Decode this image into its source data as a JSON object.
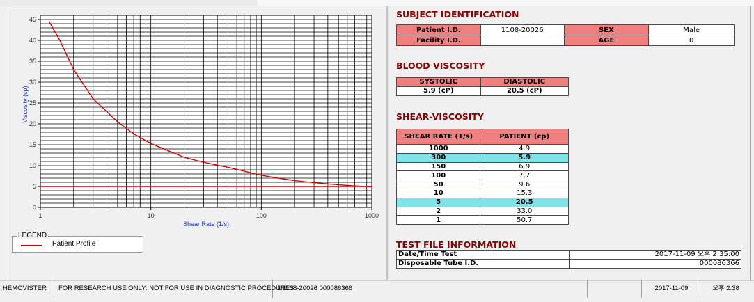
{
  "subject": {
    "title": "SUBJECT IDENTIFICATION",
    "patient_id_label": "Patient I.D.",
    "patient_id": "1108-20026",
    "sex_label": "SEX",
    "sex": "Male",
    "facility_id_label": "Facility I.D.",
    "facility_id": "",
    "age_label": "AGE",
    "age": "0"
  },
  "blood_viscosity": {
    "title": "BLOOD VISCOSITY",
    "systolic_label": "SYSTOLIC",
    "diastolic_label": "DIASTOLIC",
    "systolic": "5.9 (cP)",
    "diastolic": "20.5 (cP)"
  },
  "shear_viscosity": {
    "title": "SHEAR-VISCOSITY",
    "col1": "SHEAR RATE (1/s)",
    "col2": "PATIENT (cp)",
    "rows": [
      {
        "rate": "1000",
        "value": "4.9",
        "highlight": false
      },
      {
        "rate": "300",
        "value": "5.9",
        "highlight": true
      },
      {
        "rate": "150",
        "value": "6.9",
        "highlight": false
      },
      {
        "rate": "100",
        "value": "7.7",
        "highlight": false
      },
      {
        "rate": "50",
        "value": "9.6",
        "highlight": false
      },
      {
        "rate": "10",
        "value": "15.3",
        "highlight": false
      },
      {
        "rate": "5",
        "value": "20.5",
        "highlight": true
      },
      {
        "rate": "2",
        "value": "33.0",
        "highlight": false
      },
      {
        "rate": "1",
        "value": "50.7",
        "highlight": false
      }
    ]
  },
  "test_file": {
    "title": "TEST FILE INFORMATION",
    "datetime_label": "Date/Time Test",
    "datetime": "2017-11-09  오후 2:35:00",
    "tube_label": "Disposable Tube I.D.",
    "tube": "000086366"
  },
  "legend": {
    "title": "LEGEND",
    "entry": "Patient Profile"
  },
  "status_bar": {
    "app": "HEMOVISTER",
    "notice": "FOR RESEARCH USE ONLY: NOT FOR USE IN DIAGNOSTIC PROCEDURES",
    "record": "1  1108-20026  000086366",
    "blank": "",
    "date": "2017-11-09",
    "time": "오후 2:38"
  },
  "colors": {
    "curve": "#d40000",
    "reference_line": "#d40000",
    "header_fill": "#f08080",
    "highlight_fill": "#7fe4ea",
    "section_title": "#8b0000"
  },
  "chart_data": {
    "type": "line",
    "xlabel": "Shear Rate (1/s)",
    "ylabel": "Viscosity (cp)",
    "x_scale": "log",
    "xlim": [
      1,
      1000
    ],
    "ylim": [
      0,
      46
    ],
    "x_ticks": [
      "1",
      "10",
      "100",
      "1000"
    ],
    "y_ticks": [
      "0",
      "5",
      "10",
      "15",
      "20",
      "25",
      "30",
      "35",
      "40",
      "45"
    ],
    "grid": true,
    "series": [
      {
        "name": "Patient Profile",
        "x": [
          1.2,
          1.5,
          2,
          3,
          5,
          7,
          10,
          20,
          30,
          50,
          100,
          150,
          200,
          300,
          500,
          1000
        ],
        "y": [
          44.5,
          40.0,
          33.0,
          26.0,
          20.5,
          17.6,
          15.3,
          12.0,
          10.8,
          9.6,
          7.7,
          6.9,
          6.4,
          5.9,
          5.4,
          4.9
        ]
      }
    ],
    "reference_line": {
      "y": 5
    }
  }
}
